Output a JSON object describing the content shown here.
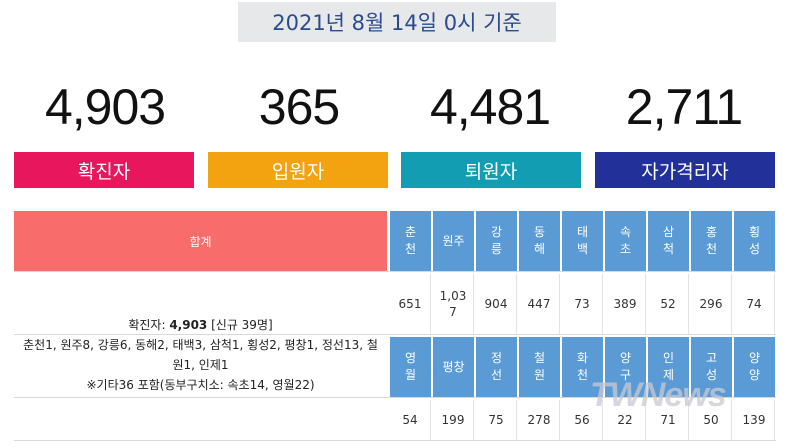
{
  "date_label": "2021년 8월 14일 0시 기준",
  "stats": [
    {
      "value": "4,903",
      "label": "확진자",
      "color": "#e8175d"
    },
    {
      "value": "365",
      "label": "입원자",
      "color": "#f2a30f"
    },
    {
      "value": "4,481",
      "label": "퇴원자",
      "color": "#129db3"
    },
    {
      "value": "2,711",
      "label": "자가격리자",
      "color": "#22309a"
    }
  ],
  "table": {
    "sum_header": "합계",
    "regions_row1": [
      "춘\n천",
      "원주",
      "강\n릉",
      "동\n해",
      "태\n백",
      "속\n초",
      "삼\n척",
      "홍\n천",
      "횡\n성"
    ],
    "values_row1": [
      "651",
      "1,03\n7",
      "904",
      "447",
      "73",
      "389",
      "52",
      "296",
      "74"
    ],
    "regions_row2": [
      "영\n월",
      "평창",
      "정\n선",
      "철\n원",
      "화\n천",
      "양\n구",
      "인\n제",
      "고\n성",
      "양\n양"
    ],
    "values_row2": [
      "54",
      "199",
      "75",
      "278",
      "56",
      "22",
      "71",
      "50",
      "139"
    ]
  },
  "summary": {
    "line1_prefix": "확진자: ",
    "line1_total": "4,903",
    "line1_suffix": " [신규 39명]",
    "line2": "춘천1, 원주8, 강릉6, 동해2, 태백3, 삼척1, 횡성2, 평창1, 정선13, 철",
    "line3": "원1, 인제1",
    "line4": "※기타36 포함(동부구치소: 속초14, 영월22)"
  },
  "watermark": "TWNews"
}
